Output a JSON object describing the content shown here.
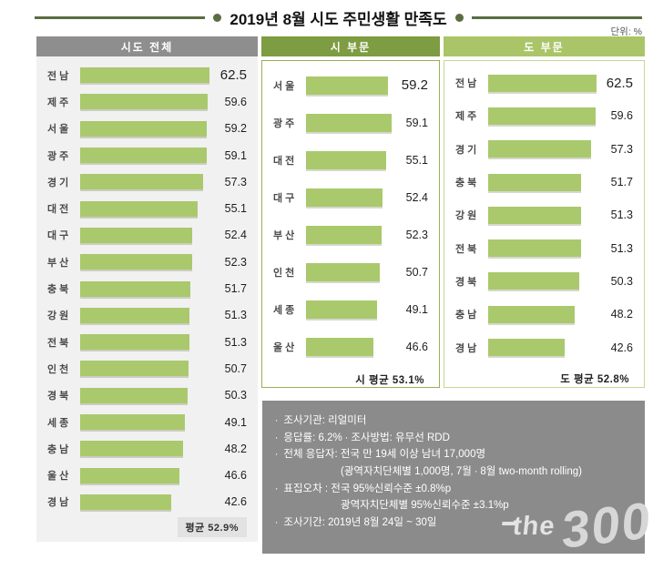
{
  "title": "2019년 8월 시도 주민생활 만족도",
  "unit_label": "단위: %",
  "colors": {
    "bar_green": "#a9c96c",
    "header_gray": "#8e8e8e",
    "header_green_dark": "#7e9c41",
    "header_green_light": "#aac568",
    "footnote_box_gray": "#8b8b8b",
    "title_line_olive": "#5a6e42",
    "panel_bg_gray": "#f1f1f1"
  },
  "chart_data": [
    {
      "type": "bar",
      "title": "시도 전체",
      "orientation": "horizontal",
      "categories": [
        "전남",
        "제주",
        "서울",
        "광주",
        "경기",
        "대전",
        "대구",
        "부산",
        "충북",
        "강원",
        "전북",
        "인천",
        "경북",
        "세종",
        "충남",
        "울산",
        "경남"
      ],
      "values": [
        62.5,
        59.6,
        59.2,
        59.1,
        57.3,
        55.1,
        52.4,
        52.3,
        51.7,
        51.3,
        51.3,
        50.7,
        50.3,
        49.1,
        48.2,
        46.6,
        42.6
      ],
      "average_label": "평균 52.9%",
      "xlim": [
        0,
        65
      ],
      "grid": false,
      "legend": "none"
    },
    {
      "type": "bar",
      "title": "시 부문",
      "orientation": "horizontal",
      "categories": [
        "서울",
        "광주",
        "대전",
        "대구",
        "부산",
        "인천",
        "세종",
        "울산"
      ],
      "values": [
        59.2,
        59.1,
        55.1,
        52.4,
        52.3,
        50.7,
        49.1,
        46.6
      ],
      "average_label": "시 평균 53.1%",
      "xlim": [
        0,
        65
      ],
      "grid": false,
      "legend": "none"
    },
    {
      "type": "bar",
      "title": "도 부문",
      "orientation": "horizontal",
      "categories": [
        "전남",
        "제주",
        "경기",
        "충북",
        "강원",
        "전북",
        "경북",
        "충남",
        "경남"
      ],
      "values": [
        62.5,
        59.6,
        57.3,
        51.7,
        51.3,
        51.3,
        50.3,
        48.2,
        42.6
      ],
      "average_label": "도 평균 52.8%",
      "xlim": [
        0,
        65
      ],
      "grid": false,
      "legend": "none"
    }
  ],
  "footnotes": {
    "lines": [
      {
        "text": "조사기관: 리얼미터",
        "bullet": true,
        "indent": 0
      },
      {
        "text": "응답률: 6.2% ∙ 조사방법: 유무선 RDD",
        "bullet": true,
        "indent": 0
      },
      {
        "text": "전체 응답자: 전국 만 19세 이상 남녀 17,000명",
        "bullet": true,
        "indent": 0
      },
      {
        "text": "(광역자치단체별 1,000명, 7월 ∙ 8월 two-month rolling)",
        "bullet": false,
        "indent": 1
      },
      {
        "text": "표집오차 : 전국 95%신뢰수준 ±0.8%p",
        "bullet": true,
        "indent": 0
      },
      {
        "text": "광역자치단체별 95%신뢰수준 ±3.1%p",
        "bullet": false,
        "indent": 1
      },
      {
        "text": "조사기간: 2019년 8월 24일 ~  30일",
        "bullet": true,
        "indent": 0
      }
    ]
  },
  "watermark": {
    "the": "the",
    "num": "300"
  }
}
